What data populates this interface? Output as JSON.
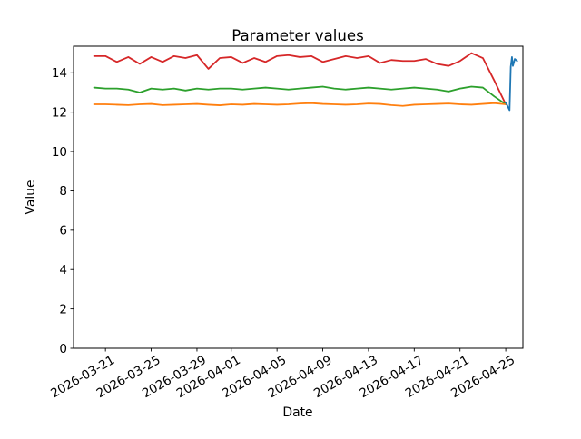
{
  "figure": {
    "background": "#ffffff",
    "axis_color": "#000000",
    "text_color": "#000000"
  },
  "chart_data": {
    "type": "line",
    "title": "Parameter values",
    "xlabel": "Date",
    "ylabel": "Value",
    "grid": false,
    "legend": "none",
    "ylim": [
      0,
      15.35
    ],
    "y_ticks": [
      0,
      2,
      4,
      6,
      8,
      10,
      12,
      14
    ],
    "xlim": [
      "2026-03-18T05:00:00Z",
      "2026-04-26T12:00:00Z"
    ],
    "x_tick_labels": [
      "2026-03-21",
      "2026-03-25",
      "2026-03-29",
      "2026-04-01",
      "2026-04-05",
      "2026-04-09",
      "2026-04-13",
      "2026-04-17",
      "2026-04-21",
      "2026-04-25"
    ],
    "x_daily": [
      "2026-03-20",
      "2026-03-21",
      "2026-03-22",
      "2026-03-23",
      "2026-03-24",
      "2026-03-25",
      "2026-03-26",
      "2026-03-27",
      "2026-03-28",
      "2026-03-29",
      "2026-03-30",
      "2026-03-31",
      "2026-04-01",
      "2026-04-02",
      "2026-04-03",
      "2026-04-04",
      "2026-04-05",
      "2026-04-06",
      "2026-04-07",
      "2026-04-08",
      "2026-04-09",
      "2026-04-10",
      "2026-04-11",
      "2026-04-12",
      "2026-04-13",
      "2026-04-14",
      "2026-04-15",
      "2026-04-16",
      "2026-04-17",
      "2026-04-18",
      "2026-04-19",
      "2026-04-20",
      "2026-04-21",
      "2026-04-22",
      "2026-04-23",
      "2026-04-24",
      "2026-04-25"
    ],
    "series": [
      {
        "name": "red-line",
        "color": "#d62728",
        "x_ref": "x_daily",
        "values": [
          14.85,
          14.85,
          14.55,
          14.8,
          14.45,
          14.8,
          14.55,
          14.85,
          14.75,
          14.9,
          14.2,
          14.75,
          14.8,
          14.5,
          14.75,
          14.55,
          14.85,
          14.9,
          14.8,
          14.85,
          14.55,
          14.7,
          14.85,
          14.75,
          14.85,
          14.5,
          14.65,
          14.6,
          14.6,
          14.7,
          14.45,
          14.35,
          14.6,
          15.0,
          14.75,
          13.6,
          12.4
        ]
      },
      {
        "name": "green-line",
        "color": "#2ca02c",
        "x_ref": "x_daily",
        "values": [
          13.25,
          13.2,
          13.2,
          13.15,
          13.0,
          13.2,
          13.15,
          13.2,
          13.1,
          13.2,
          13.15,
          13.2,
          13.2,
          13.15,
          13.2,
          13.25,
          13.2,
          13.15,
          13.2,
          13.25,
          13.3,
          13.2,
          13.15,
          13.2,
          13.25,
          13.2,
          13.15,
          13.2,
          13.25,
          13.2,
          13.15,
          13.05,
          13.2,
          13.3,
          13.25,
          12.8,
          12.4
        ]
      },
      {
        "name": "orange-line",
        "color": "#ff7f0e",
        "x_ref": "x_daily",
        "values": [
          12.4,
          12.4,
          12.38,
          12.36,
          12.4,
          12.42,
          12.36,
          12.38,
          12.4,
          12.42,
          12.38,
          12.35,
          12.4,
          12.38,
          12.42,
          12.4,
          12.38,
          12.4,
          12.44,
          12.46,
          12.42,
          12.4,
          12.38,
          12.4,
          12.44,
          12.42,
          12.36,
          12.32,
          12.38,
          12.4,
          12.42,
          12.44,
          12.4,
          12.38,
          12.42,
          12.46,
          12.4
        ]
      },
      {
        "name": "blue-line",
        "color": "#1f77b4",
        "x": [
          "2026-04-25T00:00:00Z",
          "2026-04-25T08:00:00Z",
          "2026-04-25T10:30:00Z",
          "2026-04-25T13:00:00Z",
          "2026-04-25T15:00:00Z",
          "2026-04-25T19:00:00Z",
          "2026-04-26T00:00:00Z"
        ],
        "values": [
          12.5,
          12.1,
          14.3,
          14.8,
          14.35,
          14.7,
          14.6
        ]
      }
    ]
  }
}
